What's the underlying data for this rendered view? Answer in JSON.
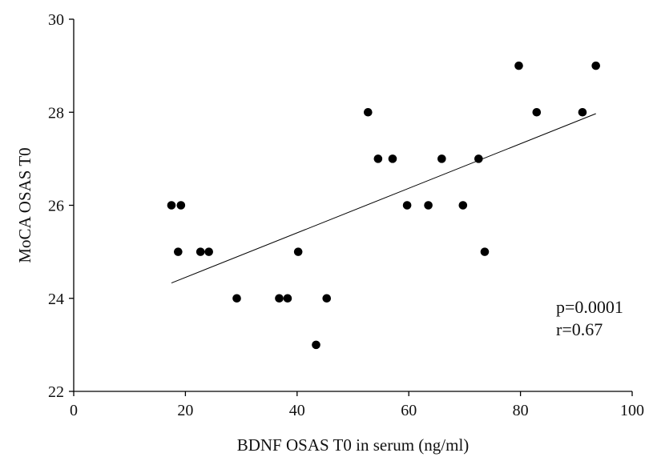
{
  "chart_data": {
    "type": "scatter",
    "xlabel": "BDNF OSAS T0 in serum (ng/ml)",
    "ylabel": "MoCA OSAS T0",
    "xlim": [
      0,
      100
    ],
    "ylim": [
      22,
      30
    ],
    "xticks": [
      0,
      20,
      40,
      60,
      80,
      100
    ],
    "yticks": [
      22,
      24,
      26,
      28,
      30
    ],
    "grid": false,
    "points": [
      {
        "x": 17.5,
        "y": 26
      },
      {
        "x": 19.2,
        "y": 26
      },
      {
        "x": 18.7,
        "y": 25
      },
      {
        "x": 22.7,
        "y": 25
      },
      {
        "x": 24.2,
        "y": 25
      },
      {
        "x": 29.2,
        "y": 24
      },
      {
        "x": 36.8,
        "y": 24
      },
      {
        "x": 38.3,
        "y": 24
      },
      {
        "x": 40.2,
        "y": 25
      },
      {
        "x": 43.4,
        "y": 23
      },
      {
        "x": 45.3,
        "y": 24
      },
      {
        "x": 52.7,
        "y": 28
      },
      {
        "x": 54.5,
        "y": 27
      },
      {
        "x": 57.1,
        "y": 27
      },
      {
        "x": 59.7,
        "y": 26
      },
      {
        "x": 63.5,
        "y": 26
      },
      {
        "x": 65.9,
        "y": 27
      },
      {
        "x": 69.7,
        "y": 26
      },
      {
        "x": 72.5,
        "y": 27
      },
      {
        "x": 73.6,
        "y": 25
      },
      {
        "x": 79.7,
        "y": 29
      },
      {
        "x": 82.9,
        "y": 28
      },
      {
        "x": 91.1,
        "y": 28
      },
      {
        "x": 93.5,
        "y": 29
      }
    ],
    "trendline": {
      "x1": 17.5,
      "y1": 24.33,
      "x2": 93.5,
      "y2": 27.97
    },
    "annotations": [
      "p=0.0001",
      "r=0.67"
    ]
  }
}
